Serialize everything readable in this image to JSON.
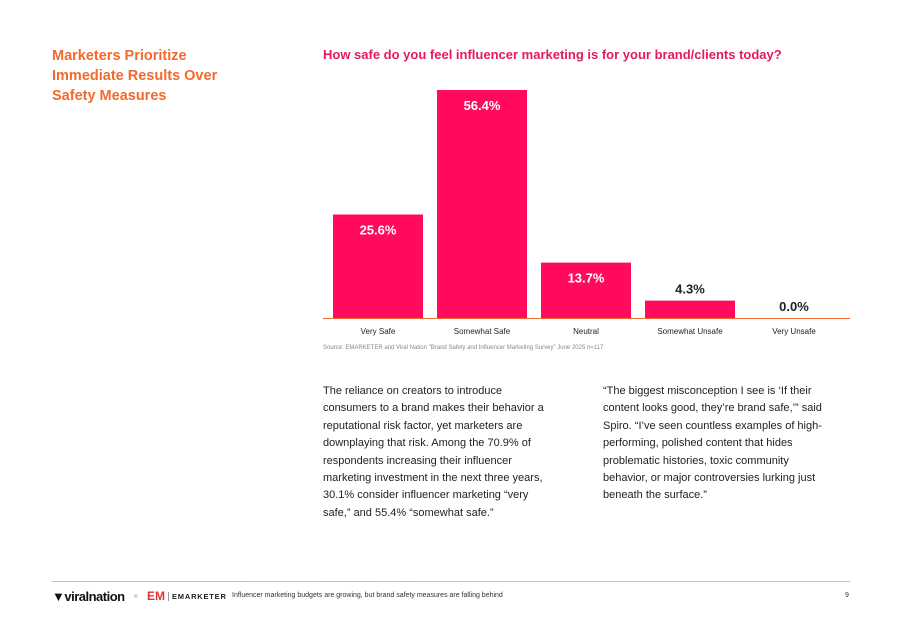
{
  "side_title": "Marketers Prioritize Immediate Results Over Safety Measures",
  "chart_data": {
    "type": "bar",
    "title": "How safe do you feel influencer marketing is for your brand/clients today?",
    "categories": [
      "Very Safe",
      "Somewhat Safe",
      "Neutral",
      "Somewhat Unsafe",
      "Very Unsafe"
    ],
    "values": [
      25.6,
      56.4,
      13.7,
      4.3,
      0.0
    ],
    "data_labels": [
      "25.6%",
      "56.4%",
      "13.7%",
      "4.3%",
      "0.0%"
    ],
    "unit": "%",
    "ylim": [
      0,
      60
    ],
    "grid": false,
    "bar_color": "#ff0a5c",
    "baseline_color": "#f26a2e"
  },
  "source": "Source: EMARKETER and Viral Nation \"Brand Safety and Influencer Marketing Survey\" June 2025 n=117",
  "body_left": "The reliance on creators to introduce consumers to a brand makes their behavior a reputational risk factor, yet marketers are downplaying that risk. Among the 70.9% of respondents increasing their influencer marketing investment in the next three years, 30.1% consider influencer marketing “very safe,” and 55.4% “somewhat safe.”",
  "body_right": "“The biggest misconception I see is ‘If their content looks good, they’re brand safe,’” said Spiro. “I’ve seen countless examples of high-performing, polished content that hides problematic histories, toxic community behavior, or major controversies lurking just beneath the surface.”",
  "footer": {
    "logo_viral_nation": "viralnation",
    "separator": "×",
    "logo_em": "EM",
    "logo_emarketer": "EMARKETER",
    "text": "Influencer marketing budgets are growing, but brand safety measures are falling behind",
    "page": "9"
  }
}
